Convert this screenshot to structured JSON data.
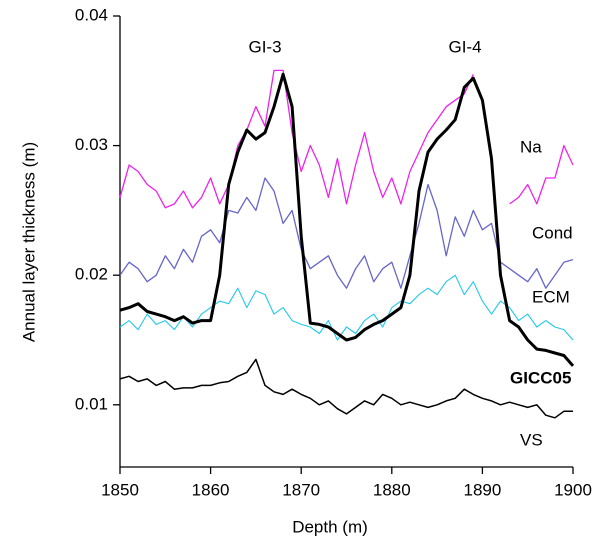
{
  "chart_data": {
    "type": "line",
    "xlabel": "Depth (m)",
    "ylabel": "Annual layer thickness (m)",
    "annotations": [
      "GI-3",
      "GI-4"
    ],
    "xlim": [
      1850,
      1900
    ],
    "xticks": [
      1850,
      1860,
      1870,
      1880,
      1890,
      1900
    ],
    "ylim": [
      0.0052,
      0.04
    ],
    "yticks": [
      0.01,
      0.02,
      0.03,
      0.04
    ],
    "x": [
      1850,
      1851,
      1852,
      1853,
      1854,
      1855,
      1856,
      1857,
      1858,
      1859,
      1860,
      1861,
      1862,
      1863,
      1864,
      1865,
      1866,
      1867,
      1868,
      1869,
      1870,
      1871,
      1872,
      1873,
      1874,
      1875,
      1876,
      1877,
      1878,
      1879,
      1880,
      1881,
      1882,
      1883,
      1884,
      1885,
      1886,
      1887,
      1888,
      1889,
      1890,
      1891,
      1892,
      1893,
      1894,
      1895,
      1896,
      1897,
      1898,
      1899,
      1900
    ],
    "series": [
      {
        "name": "Na",
        "color": "#ee22ee",
        "line_width": 1.3,
        "values": [
          0.026,
          0.0285,
          0.028,
          0.027,
          0.0265,
          0.0252,
          0.0255,
          0.0265,
          0.0252,
          0.026,
          0.0275,
          0.0255,
          0.027,
          0.03,
          0.0312,
          0.033,
          0.0315,
          0.0358,
          0.0358,
          0.031,
          0.028,
          0.03,
          0.0285,
          0.026,
          0.029,
          0.0255,
          0.0285,
          0.031,
          0.028,
          0.026,
          0.0275,
          0.0255,
          0.028,
          0.0295,
          0.031,
          0.032,
          0.033,
          0.0335,
          0.034,
          0.0355,
          null,
          null,
          null,
          0.0255,
          0.026,
          0.027,
          0.0255,
          0.0275,
          0.0275,
          0.03,
          0.0285
        ]
      },
      {
        "name": "Cond",
        "color": "#6666cc",
        "line_width": 1.3,
        "values": [
          0.02,
          0.021,
          0.0205,
          0.0195,
          0.02,
          0.0215,
          0.0205,
          0.022,
          0.021,
          0.023,
          0.0235,
          0.0225,
          0.025,
          0.0248,
          0.026,
          0.025,
          0.0275,
          0.0265,
          0.024,
          0.025,
          0.022,
          0.0205,
          0.021,
          0.0215,
          0.02,
          0.019,
          0.0205,
          0.0215,
          0.0195,
          0.0205,
          0.021,
          0.019,
          0.0215,
          0.024,
          0.027,
          0.025,
          0.0215,
          0.0245,
          0.023,
          0.025,
          0.0235,
          0.024,
          0.021,
          0.0205,
          0.02,
          0.0195,
          0.0205,
          0.019,
          0.02,
          0.021,
          0.0212
        ]
      },
      {
        "name": "ECM",
        "color": "#22c8ee",
        "line_width": 1.1,
        "values": [
          0.016,
          0.0165,
          0.0158,
          0.017,
          0.0162,
          0.0165,
          0.0158,
          0.0168,
          0.016,
          0.017,
          0.0175,
          0.018,
          0.0178,
          0.019,
          0.0175,
          0.0188,
          0.0185,
          0.017,
          0.0175,
          0.0165,
          0.0162,
          0.016,
          0.0155,
          0.0165,
          0.015,
          0.016,
          0.0155,
          0.0165,
          0.017,
          0.016,
          0.0175,
          0.018,
          0.0178,
          0.0185,
          0.019,
          0.0185,
          0.0195,
          0.02,
          0.0185,
          0.0195,
          0.018,
          0.017,
          0.018,
          0.0175,
          0.0165,
          0.017,
          0.016,
          0.0165,
          0.016,
          0.0158,
          0.015
        ]
      },
      {
        "name": "GICC05",
        "color": "#000000",
        "line_width": 3,
        "values": [
          0.0173,
          0.0175,
          0.0178,
          0.0172,
          0.017,
          0.0168,
          0.0165,
          0.0168,
          0.0163,
          0.0165,
          0.0165,
          0.02,
          0.027,
          0.0295,
          0.0312,
          0.0305,
          0.031,
          0.033,
          0.0355,
          0.033,
          0.023,
          0.0163,
          0.0162,
          0.016,
          0.0155,
          0.015,
          0.0152,
          0.0158,
          0.0162,
          0.0165,
          0.017,
          0.0175,
          0.02,
          0.0265,
          0.0295,
          0.0305,
          0.0312,
          0.032,
          0.0345,
          0.0352,
          0.0335,
          0.029,
          0.02,
          0.0165,
          0.016,
          0.015,
          0.0143,
          0.0142,
          0.014,
          0.0138,
          0.013
        ]
      },
      {
        "name": "VS",
        "color": "#000000",
        "line_width": 1.5,
        "values": [
          0.012,
          0.0122,
          0.0118,
          0.012,
          0.0115,
          0.0118,
          0.0112,
          0.0113,
          0.0113,
          0.0115,
          0.0115,
          0.0117,
          0.0118,
          0.0122,
          0.0125,
          0.0135,
          0.0115,
          0.011,
          0.0108,
          0.0112,
          0.0108,
          0.0105,
          0.01,
          0.0103,
          0.0097,
          0.0093,
          0.0098,
          0.0103,
          0.01,
          0.0108,
          0.0105,
          0.01,
          0.0102,
          0.01,
          0.0098,
          0.01,
          0.0103,
          0.0105,
          0.0112,
          0.0108,
          0.0105,
          0.0103,
          0.01,
          0.0102,
          0.01,
          0.0098,
          0.01,
          0.0092,
          0.009,
          0.0095,
          0.0095
        ]
      }
    ]
  }
}
